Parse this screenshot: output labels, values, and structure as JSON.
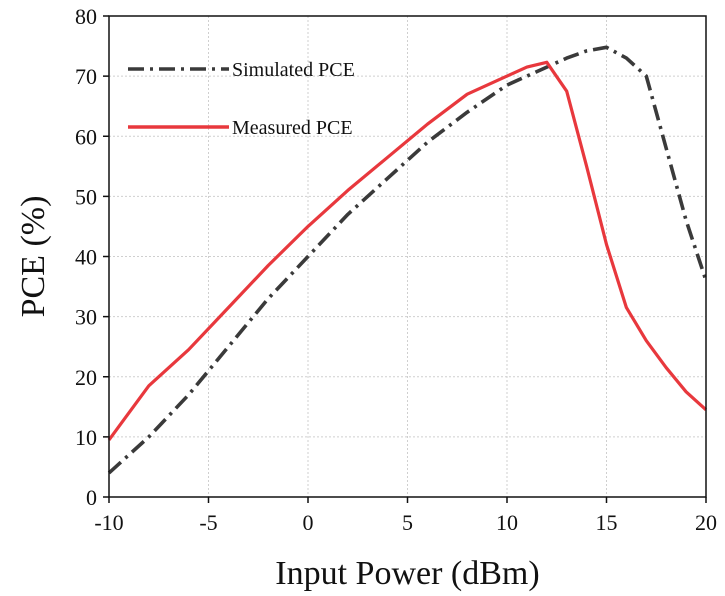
{
  "chart_data": {
    "type": "line",
    "title": "",
    "xlabel": "Input Power (dBm)",
    "ylabel": "PCE (%)",
    "xlim": [
      -10,
      20
    ],
    "ylim": [
      0,
      80
    ],
    "xticks": [
      -10,
      -5,
      0,
      5,
      10,
      15,
      20
    ],
    "yticks": [
      0,
      10,
      20,
      30,
      40,
      50,
      60,
      70,
      80
    ],
    "grid": true,
    "legend_position": "top-left",
    "series": [
      {
        "name": "Simulated PCE",
        "color": "#3a3a3a",
        "style": "dash-dot",
        "x": [
          -10,
          -8,
          -6,
          -4,
          -2,
          0,
          2,
          4,
          6,
          8,
          10,
          12,
          13,
          14,
          15,
          16,
          17,
          18,
          19,
          20
        ],
        "y": [
          4,
          10,
          17,
          25,
          33,
          40,
          47,
          53,
          59,
          64,
          68.5,
          71.5,
          73,
          74.2,
          74.8,
          73,
          70,
          58,
          46,
          36
        ]
      },
      {
        "name": "Measured PCE",
        "color": "#e8383d",
        "style": "solid",
        "x": [
          -10,
          -8,
          -6,
          -4,
          -2,
          0,
          2,
          4,
          6,
          8,
          10,
          11,
          12,
          13,
          14,
          15,
          16,
          17,
          18,
          19,
          20
        ],
        "y": [
          9.5,
          18.5,
          24.5,
          31.5,
          38.5,
          45,
          51,
          56.5,
          62,
          67,
          70,
          71.5,
          72.3,
          67.5,
          55,
          42,
          31.5,
          26,
          21.5,
          17.5,
          14.5
        ]
      }
    ]
  }
}
